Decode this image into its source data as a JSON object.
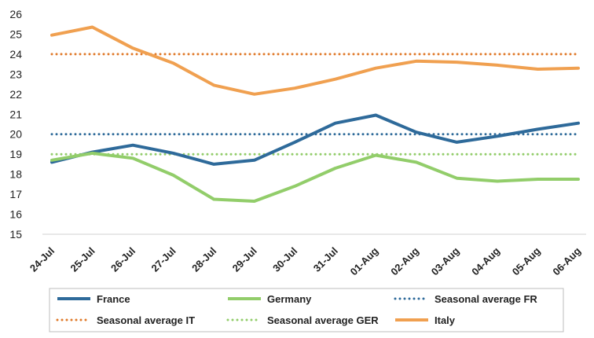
{
  "chart_data": {
    "type": "line",
    "title": "",
    "xlabel": "",
    "ylabel": "",
    "ylim": [
      15,
      26
    ],
    "yticks": [
      15,
      16,
      17,
      18,
      19,
      20,
      21,
      22,
      23,
      24,
      25,
      26
    ],
    "grid": false,
    "legend_position": "bottom",
    "categories": [
      "24-Jul",
      "25-Jul",
      "26-Jul",
      "27-Jul",
      "28-Jul",
      "29-Jul",
      "30-Jul",
      "31-Jul",
      "01-Aug",
      "02-Aug",
      "03-Aug",
      "04-Aug",
      "05-Aug",
      "06-Aug"
    ],
    "series": [
      {
        "name": "France",
        "color": "#2e6a9a",
        "style": "solid",
        "values": [
          18.6,
          19.1,
          19.45,
          19.05,
          18.5,
          18.7,
          19.6,
          20.55,
          20.95,
          20.1,
          19.6,
          19.9,
          20.25,
          20.55
        ]
      },
      {
        "name": "Germany",
        "color": "#92cd6a",
        "style": "solid",
        "values": [
          18.7,
          19.05,
          18.8,
          17.95,
          16.75,
          16.65,
          17.4,
          18.3,
          18.95,
          18.6,
          17.8,
          17.65,
          17.75,
          17.75
        ]
      },
      {
        "name": "Seasonal average FR",
        "color": "#2e6a9a",
        "style": "dotted",
        "values": [
          20,
          20,
          20,
          20,
          20,
          20,
          20,
          20,
          20,
          20,
          20,
          20,
          20,
          20
        ]
      },
      {
        "name": "Seasonal average IT",
        "color": "#e07a2a",
        "style": "dotted",
        "values": [
          24,
          24,
          24,
          24,
          24,
          24,
          24,
          24,
          24,
          24,
          24,
          24,
          24,
          24
        ]
      },
      {
        "name": "Seasonal average GER",
        "color": "#92cd6a",
        "style": "dotted",
        "values": [
          19,
          19,
          19,
          19,
          19,
          19,
          19,
          19,
          19,
          19,
          19,
          19,
          19,
          19
        ]
      },
      {
        "name": "Italy",
        "color": "#f0a050",
        "style": "solid",
        "values": [
          24.95,
          25.35,
          24.3,
          23.55,
          22.45,
          22.0,
          22.3,
          22.75,
          23.3,
          23.65,
          23.6,
          23.45,
          23.25,
          23.3
        ]
      }
    ]
  }
}
